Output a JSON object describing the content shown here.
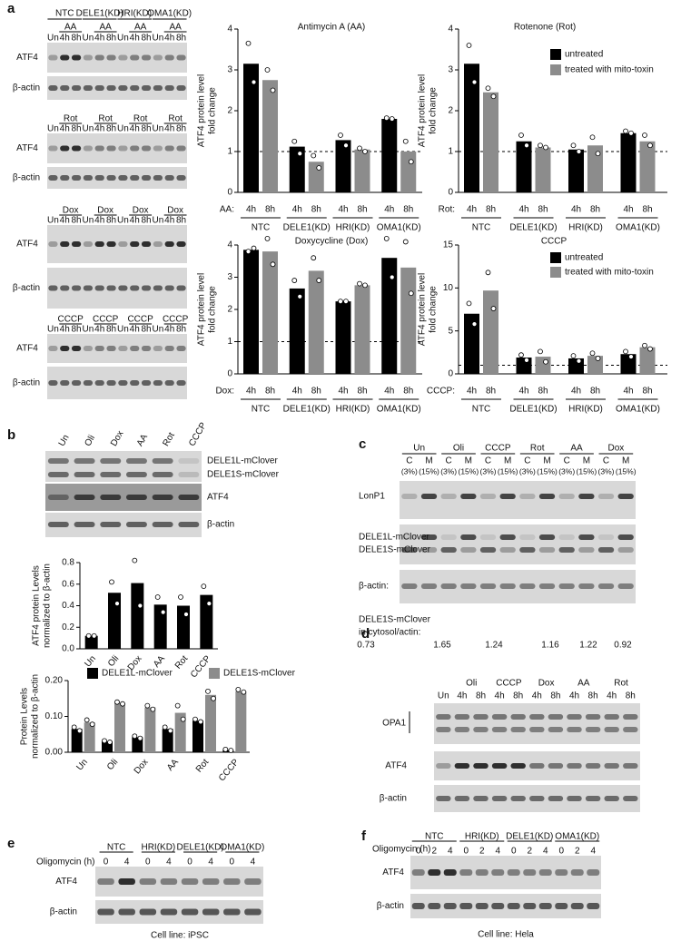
{
  "panel_letters": [
    "a",
    "b",
    "c",
    "d",
    "e",
    "f"
  ],
  "blots": {
    "a": {
      "groups": [
        "NTC",
        "DELE1(KD)",
        "HRI(KD)",
        "OMA1(KD)"
      ],
      "treatments": [
        "AA",
        "Rot",
        "Dox",
        "CCCP"
      ],
      "lanes": [
        "Un",
        "4h",
        "8h"
      ],
      "rows": [
        "ATF4",
        "β-actin"
      ]
    },
    "b": {
      "lanes": [
        "Un",
        "Oli",
        "Dox",
        "AA",
        "Rot",
        "CCCP"
      ],
      "rows": [
        "DELE1L-mClover",
        "DELE1S-mClover",
        "ATF4",
        "β-actin"
      ]
    },
    "c": {
      "groups": [
        "Un",
        "Oli",
        "CCCP",
        "Rot",
        "AA",
        "Dox"
      ],
      "fractions": [
        "C",
        "M"
      ],
      "loads": [
        "(3%)",
        "(15%)"
      ],
      "rows": [
        "LonP1",
        "DELE1L-mClover",
        "DELE1S-mClover",
        "β-actin:"
      ],
      "ratio_label": [
        "DELE1S-mClover",
        "in cytosol/actin:"
      ],
      "ratios": [
        0.73,
        1.65,
        1.24,
        1.16,
        1.22,
        0.92
      ]
    },
    "d": {
      "groups": [
        "Oli",
        "CCCP",
        "Dox",
        "AA",
        "Rot"
      ],
      "lanes": [
        "Un",
        "4h",
        "8h"
      ],
      "rows": [
        "OPA1",
        "ATF4",
        "β-actin"
      ]
    },
    "e": {
      "treatment": "Oligomycin (h)",
      "groups": [
        "NTC",
        "HRI(KD)",
        "DELE1(KD)",
        "OMA1(KD)"
      ],
      "times": [
        0,
        4
      ],
      "rows": [
        "ATF4",
        "β-actin"
      ],
      "cell_line": "Cell line: iPSC"
    },
    "f": {
      "treatment": "Oligomycin (h)",
      "groups": [
        "NTC",
        "HRI(KD)",
        "DELE1(KD)",
        "OMA1(KD)"
      ],
      "times": [
        0,
        2,
        4
      ],
      "rows": [
        "ATF4",
        "β-actin"
      ],
      "cell_line": "Cell line: Hela"
    }
  },
  "chart_data": [
    {
      "type": "bar",
      "title": "Antimycin A (AA)",
      "y_label": [
        "ATF4 protein level",
        "fold change"
      ],
      "x_prefix": "AA:",
      "groups": [
        "NTC",
        "DELE1(KD)",
        "HRI(KD)",
        "OMA1(KD)"
      ],
      "subcategories": [
        "4h",
        "8h"
      ],
      "series": [
        {
          "color": "#000000",
          "values": [
            3.15,
            1.12,
            1.28,
            1.8
          ],
          "replicates": [
            [
              3.65,
              2.7
            ],
            [
              1.25,
              0.95
            ],
            [
              1.4,
              1.15
            ],
            [
              1.82,
              1.8
            ]
          ]
        },
        {
          "color": "#8c8c8c",
          "values": [
            2.75,
            0.75,
            1.05,
            1.0
          ],
          "replicates": [
            [
              3.0,
              2.5
            ],
            [
              0.9,
              0.6
            ],
            [
              1.08,
              1.0
            ],
            [
              1.25,
              0.75
            ]
          ]
        }
      ],
      "ylim": [
        0,
        4
      ],
      "yticks": [
        0,
        1,
        2,
        3,
        4
      ],
      "reference_line": 1
    },
    {
      "type": "bar",
      "title": "Rotenone (Rot)",
      "y_label": [
        "ATF4 protein level",
        "fold change"
      ],
      "x_prefix": "Rot:",
      "groups": [
        "NTC",
        "DELE1(KD)",
        "HRI(KD)",
        "OMA1(KD)"
      ],
      "subcategories": [
        "4h",
        "8h"
      ],
      "series": [
        {
          "name": "untreated",
          "color": "#000000",
          "values": [
            3.15,
            1.25,
            1.05,
            1.45
          ],
          "replicates": [
            [
              3.6,
              2.7
            ],
            [
              1.4,
              1.15
            ],
            [
              1.15,
              1.0
            ],
            [
              1.5,
              1.45
            ]
          ]
        },
        {
          "name": "treated with mito-toxin",
          "color": "#8c8c8c",
          "values": [
            2.45,
            1.1,
            1.15,
            1.25
          ],
          "replicates": [
            [
              2.55,
              2.35
            ],
            [
              1.15,
              1.1
            ],
            [
              1.35,
              0.95
            ],
            [
              1.4,
              1.15
            ]
          ]
        }
      ],
      "ylim": [
        0,
        4
      ],
      "yticks": [
        0,
        1,
        2,
        3,
        4
      ],
      "reference_line": 1
    },
    {
      "type": "bar",
      "title": "Doxycycline (Dox)",
      "y_label": [
        "ATF4 protein level",
        "fold change"
      ],
      "x_prefix": "Dox:",
      "groups": [
        "NTC",
        "DELE1(KD)",
        "HRI(KD)",
        "OMA1(KD)"
      ],
      "subcategories": [
        "4h",
        "8h"
      ],
      "series": [
        {
          "color": "#000000",
          "values": [
            3.85,
            2.65,
            2.25,
            3.6
          ],
          "replicates": [
            [
              3.8,
              3.9
            ],
            [
              2.9,
              2.4
            ],
            [
              2.25,
              2.25
            ],
            [
              4.2,
              3.0
            ]
          ]
        },
        {
          "color": "#8c8c8c",
          "values": [
            3.8,
            3.2,
            2.75,
            3.3
          ],
          "replicates": [
            [
              4.2,
              3.4
            ],
            [
              3.6,
              2.9
            ],
            [
              2.8,
              2.75
            ],
            [
              4.1,
              2.5
            ]
          ]
        }
      ],
      "ylim": [
        0,
        4
      ],
      "yticks": [
        0,
        1,
        2,
        3,
        4
      ],
      "reference_line": 1
    },
    {
      "type": "bar",
      "title": "CCCP",
      "y_label": [
        "ATF4 protein level",
        "fold change"
      ],
      "x_prefix": "CCCP:",
      "groups": [
        "NTC",
        "DELE1(KD)",
        "HRI(KD)",
        "OMA1(KD)"
      ],
      "subcategories": [
        "4h",
        "8h"
      ],
      "series": [
        {
          "name": "untreated",
          "color": "#000000",
          "values": [
            7.0,
            1.9,
            1.8,
            2.3
          ],
          "replicates": [
            [
              8.2,
              5.8
            ],
            [
              2.2,
              1.6
            ],
            [
              2.1,
              1.5
            ],
            [
              2.6,
              2.0
            ]
          ]
        },
        {
          "name": "treated with mito-toxin",
          "color": "#8c8c8c",
          "values": [
            9.7,
            2.0,
            2.1,
            3.1
          ],
          "replicates": [
            [
              11.8,
              7.6
            ],
            [
              2.6,
              1.4
            ],
            [
              2.4,
              1.8
            ],
            [
              3.3,
              2.9
            ]
          ]
        }
      ],
      "ylim": [
        0,
        15
      ],
      "yticks": [
        0,
        5,
        10,
        15
      ],
      "reference_line": 1
    },
    {
      "type": "bar",
      "y_label": [
        "ATF4 protein Levels",
        "normalized to β-actin"
      ],
      "categories": [
        "Un",
        "Oli",
        "Dox",
        "AA",
        "Rot",
        "CCCP"
      ],
      "color": "#000000",
      "values": [
        0.12,
        0.52,
        0.61,
        0.41,
        0.4,
        0.5
      ],
      "replicates": [
        [
          0.12,
          0.12
        ],
        [
          0.62,
          0.42
        ],
        [
          0.82,
          0.4
        ],
        [
          0.48,
          0.34
        ],
        [
          0.48,
          0.32
        ],
        [
          0.58,
          0.42
        ]
      ],
      "ylim": [
        0,
        0.8
      ],
      "yticks": [
        {
          "value": 0,
          "label": "0.0"
        },
        0.2,
        0.4,
        0.6,
        0.8
      ]
    },
    {
      "type": "bar",
      "y_label": [
        "Protein Levels",
        "normalized to β-actin"
      ],
      "categories": [
        "Un",
        "Oli",
        "Dox",
        "AA",
        "Rot",
        "CCCP"
      ],
      "series": [
        {
          "name": "DELE1L-mClover",
          "color": "#000000",
          "values": [
            0.065,
            0.03,
            0.042,
            0.065,
            0.088,
            0.006
          ],
          "replicates": [
            [
              0.07,
              0.06
            ],
            [
              0.032,
              0.028
            ],
            [
              0.045,
              0.039
            ],
            [
              0.07,
              0.06
            ],
            [
              0.092,
              0.085
            ],
            [
              0.008,
              0.005
            ]
          ]
        },
        {
          "name": "DELE1S-mClover",
          "color": "#8c8c8c",
          "values": [
            0.083,
            0.137,
            0.125,
            0.11,
            0.16,
            0.17
          ],
          "replicates": [
            [
              0.09,
              0.078
            ],
            [
              0.14,
              0.135
            ],
            [
              0.13,
              0.12
            ],
            [
              0.13,
              0.092
            ],
            [
              0.17,
              0.15
            ],
            [
              0.175,
              0.168
            ]
          ]
        }
      ],
      "ylim": [
        0,
        0.2
      ],
      "yticks": [
        {
          "value": 0,
          "label": "0.00"
        },
        {
          "value": 0.1,
          "label": "0.10"
        },
        {
          "value": 0.2,
          "label": "0.20"
        }
      ]
    }
  ]
}
